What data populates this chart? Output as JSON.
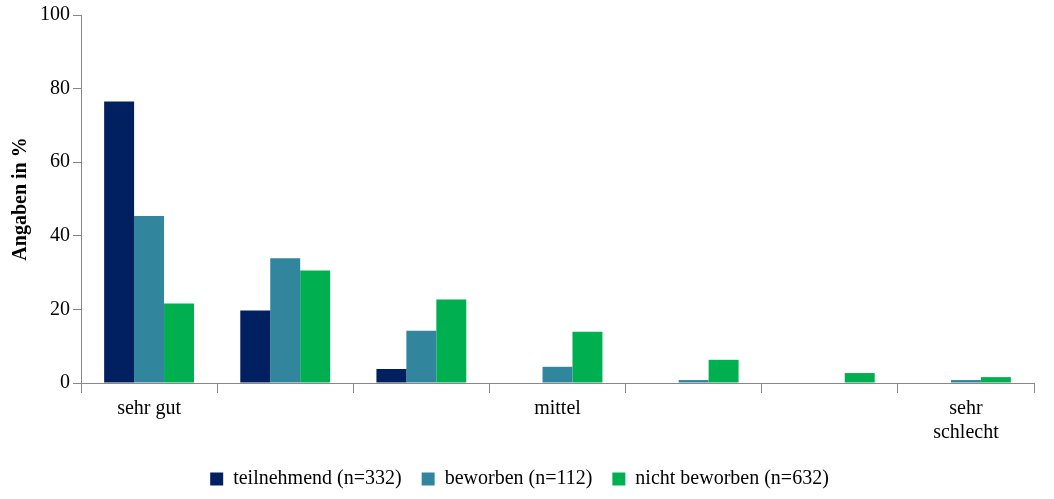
{
  "chart_data": {
    "type": "bar",
    "ylabel": "Angaben in %",
    "categories": [
      "sehr gut",
      null,
      null,
      "mittel",
      null,
      null,
      "sehr schlecht"
    ],
    "series": [
      {
        "name": "teilnehmend (n=332)",
        "color": "#002060",
        "values": [
          76.5,
          19.7,
          3.8,
          0,
          0,
          0,
          0
        ]
      },
      {
        "name": "beworben (n=112)",
        "color": "#31859c",
        "values": [
          45.4,
          33.9,
          14.2,
          4.4,
          0.8,
          0,
          0.8
        ]
      },
      {
        "name": "nicht beworben (n=632)",
        "color": "#00b050",
        "values": [
          21.6,
          30.6,
          22.7,
          13.9,
          6.3,
          2.7,
          1.6
        ]
      }
    ],
    "ylim": [
      0,
      100
    ],
    "yticks": [
      0,
      20,
      40,
      60,
      80,
      100
    ],
    "grid": false,
    "legend": "bottom"
  }
}
